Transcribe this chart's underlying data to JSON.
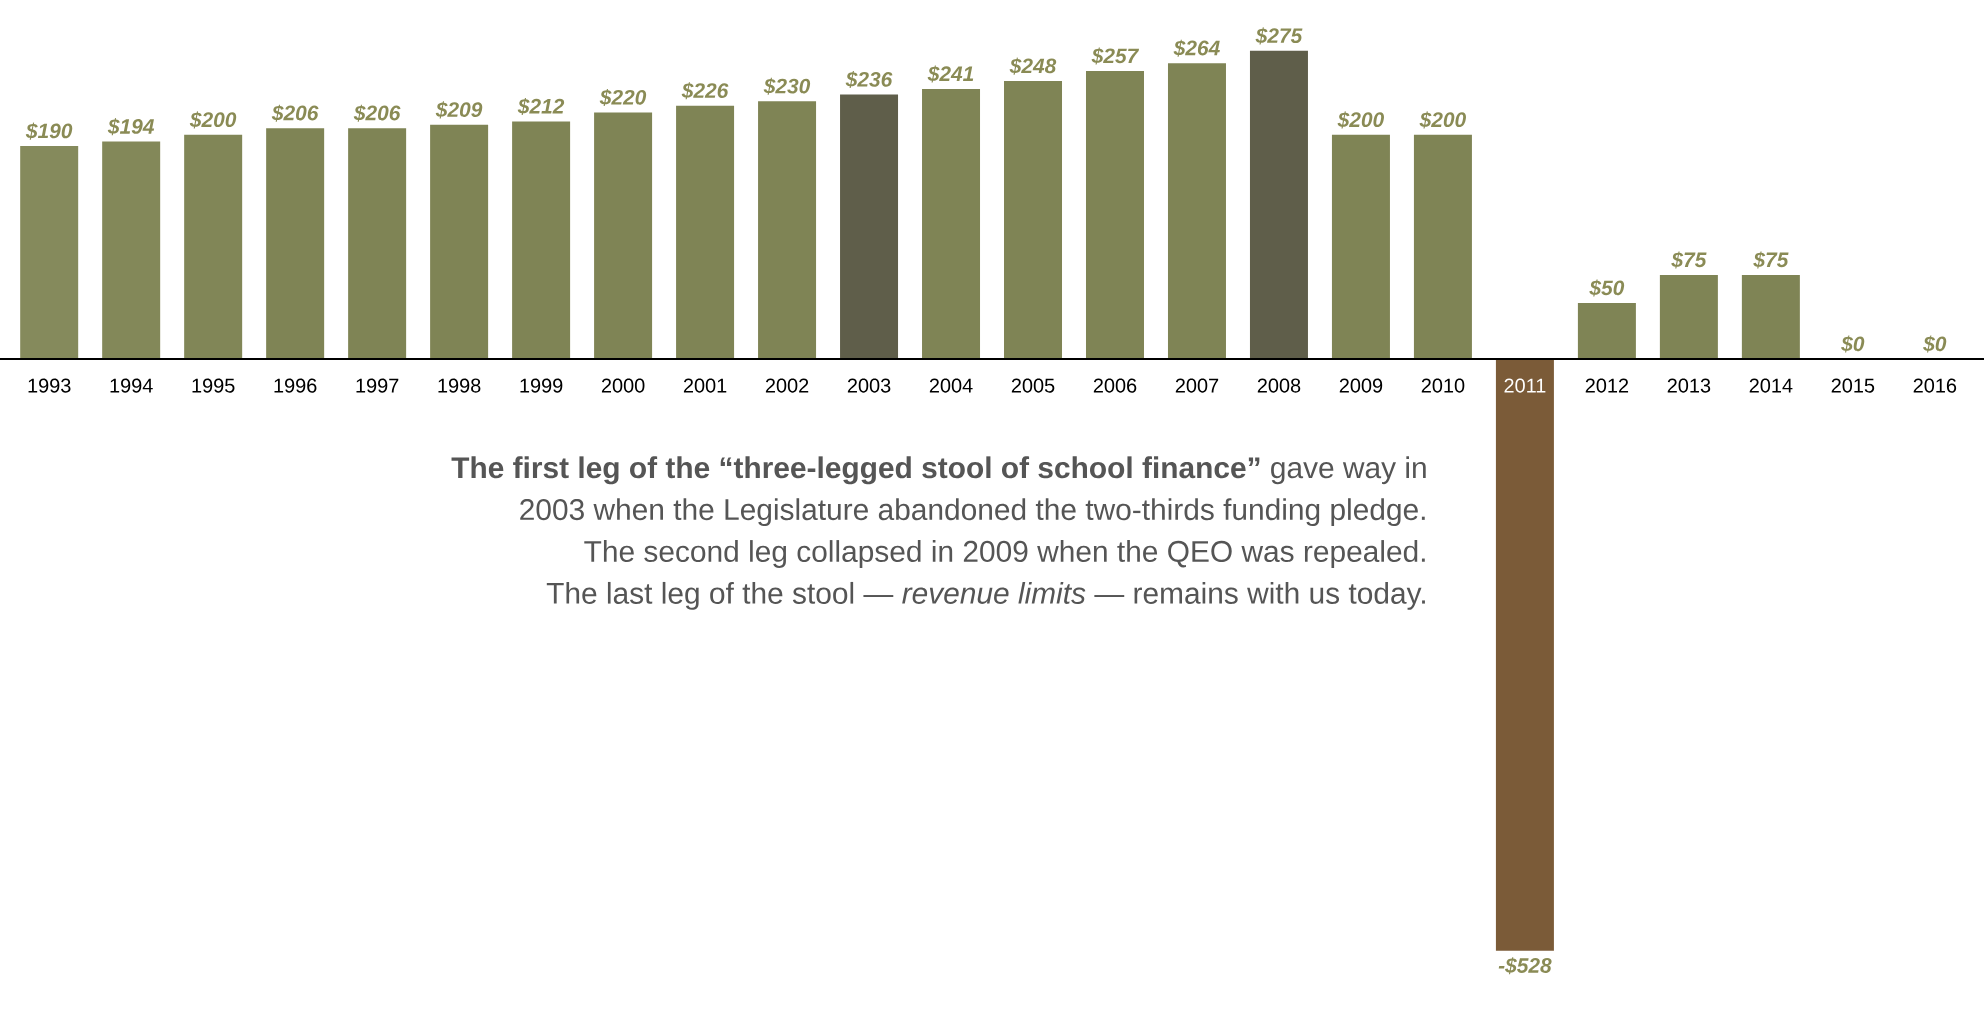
{
  "chart_data": {
    "type": "bar",
    "categories": [
      "1993",
      "1994",
      "1995",
      "1996",
      "1997",
      "1998",
      "1999",
      "2000",
      "2001",
      "2002",
      "2003",
      "2004",
      "2005",
      "2006",
      "2007",
      "2008",
      "2009",
      "2010",
      "2011",
      "2012",
      "2013",
      "2014",
      "2015",
      "2016"
    ],
    "values": [
      190,
      194,
      200,
      206,
      206,
      209,
      212,
      220,
      226,
      230,
      236,
      241,
      248,
      257,
      264,
      275,
      200,
      200,
      -528,
      50,
      75,
      75,
      0,
      0
    ],
    "value_labels": [
      "$190",
      "$194",
      "$200",
      "$206",
      "$206",
      "$209",
      "$212",
      "$220",
      "$226",
      "$230",
      "$236",
      "$241",
      "$248",
      "$257",
      "$264",
      "$275",
      "$200",
      "$200",
      "-$528",
      "$50",
      "$75",
      "$75",
      "$0",
      "$0"
    ],
    "colors": [
      "#858a5c",
      "#838859",
      "#818657",
      "#7f8455",
      "#7f8455",
      "#7f8455",
      "#7f8455",
      "#7f8455",
      "#7f8455",
      "#7f8455",
      "#5f5e4a",
      "#7f8455",
      "#7f8455",
      "#7f8455",
      "#7f8455",
      "#5f5e4a",
      "#7f8455",
      "#7f8455",
      "#7b5b38",
      "#7f8455",
      "#7f8455",
      "#7f8455",
      "#7f8455",
      "#7f8455"
    ],
    "annotations": [
      "**The first leg of the “three-legged stool of school finance”** gave way in",
      "2003 when the Legislature abandoned the two-thirds funding pledge.",
      "The second leg collapsed in 2009 when the QEO was repealed.",
      "The last leg of the stool — *revenue limits* — remains with us today."
    ]
  }
}
